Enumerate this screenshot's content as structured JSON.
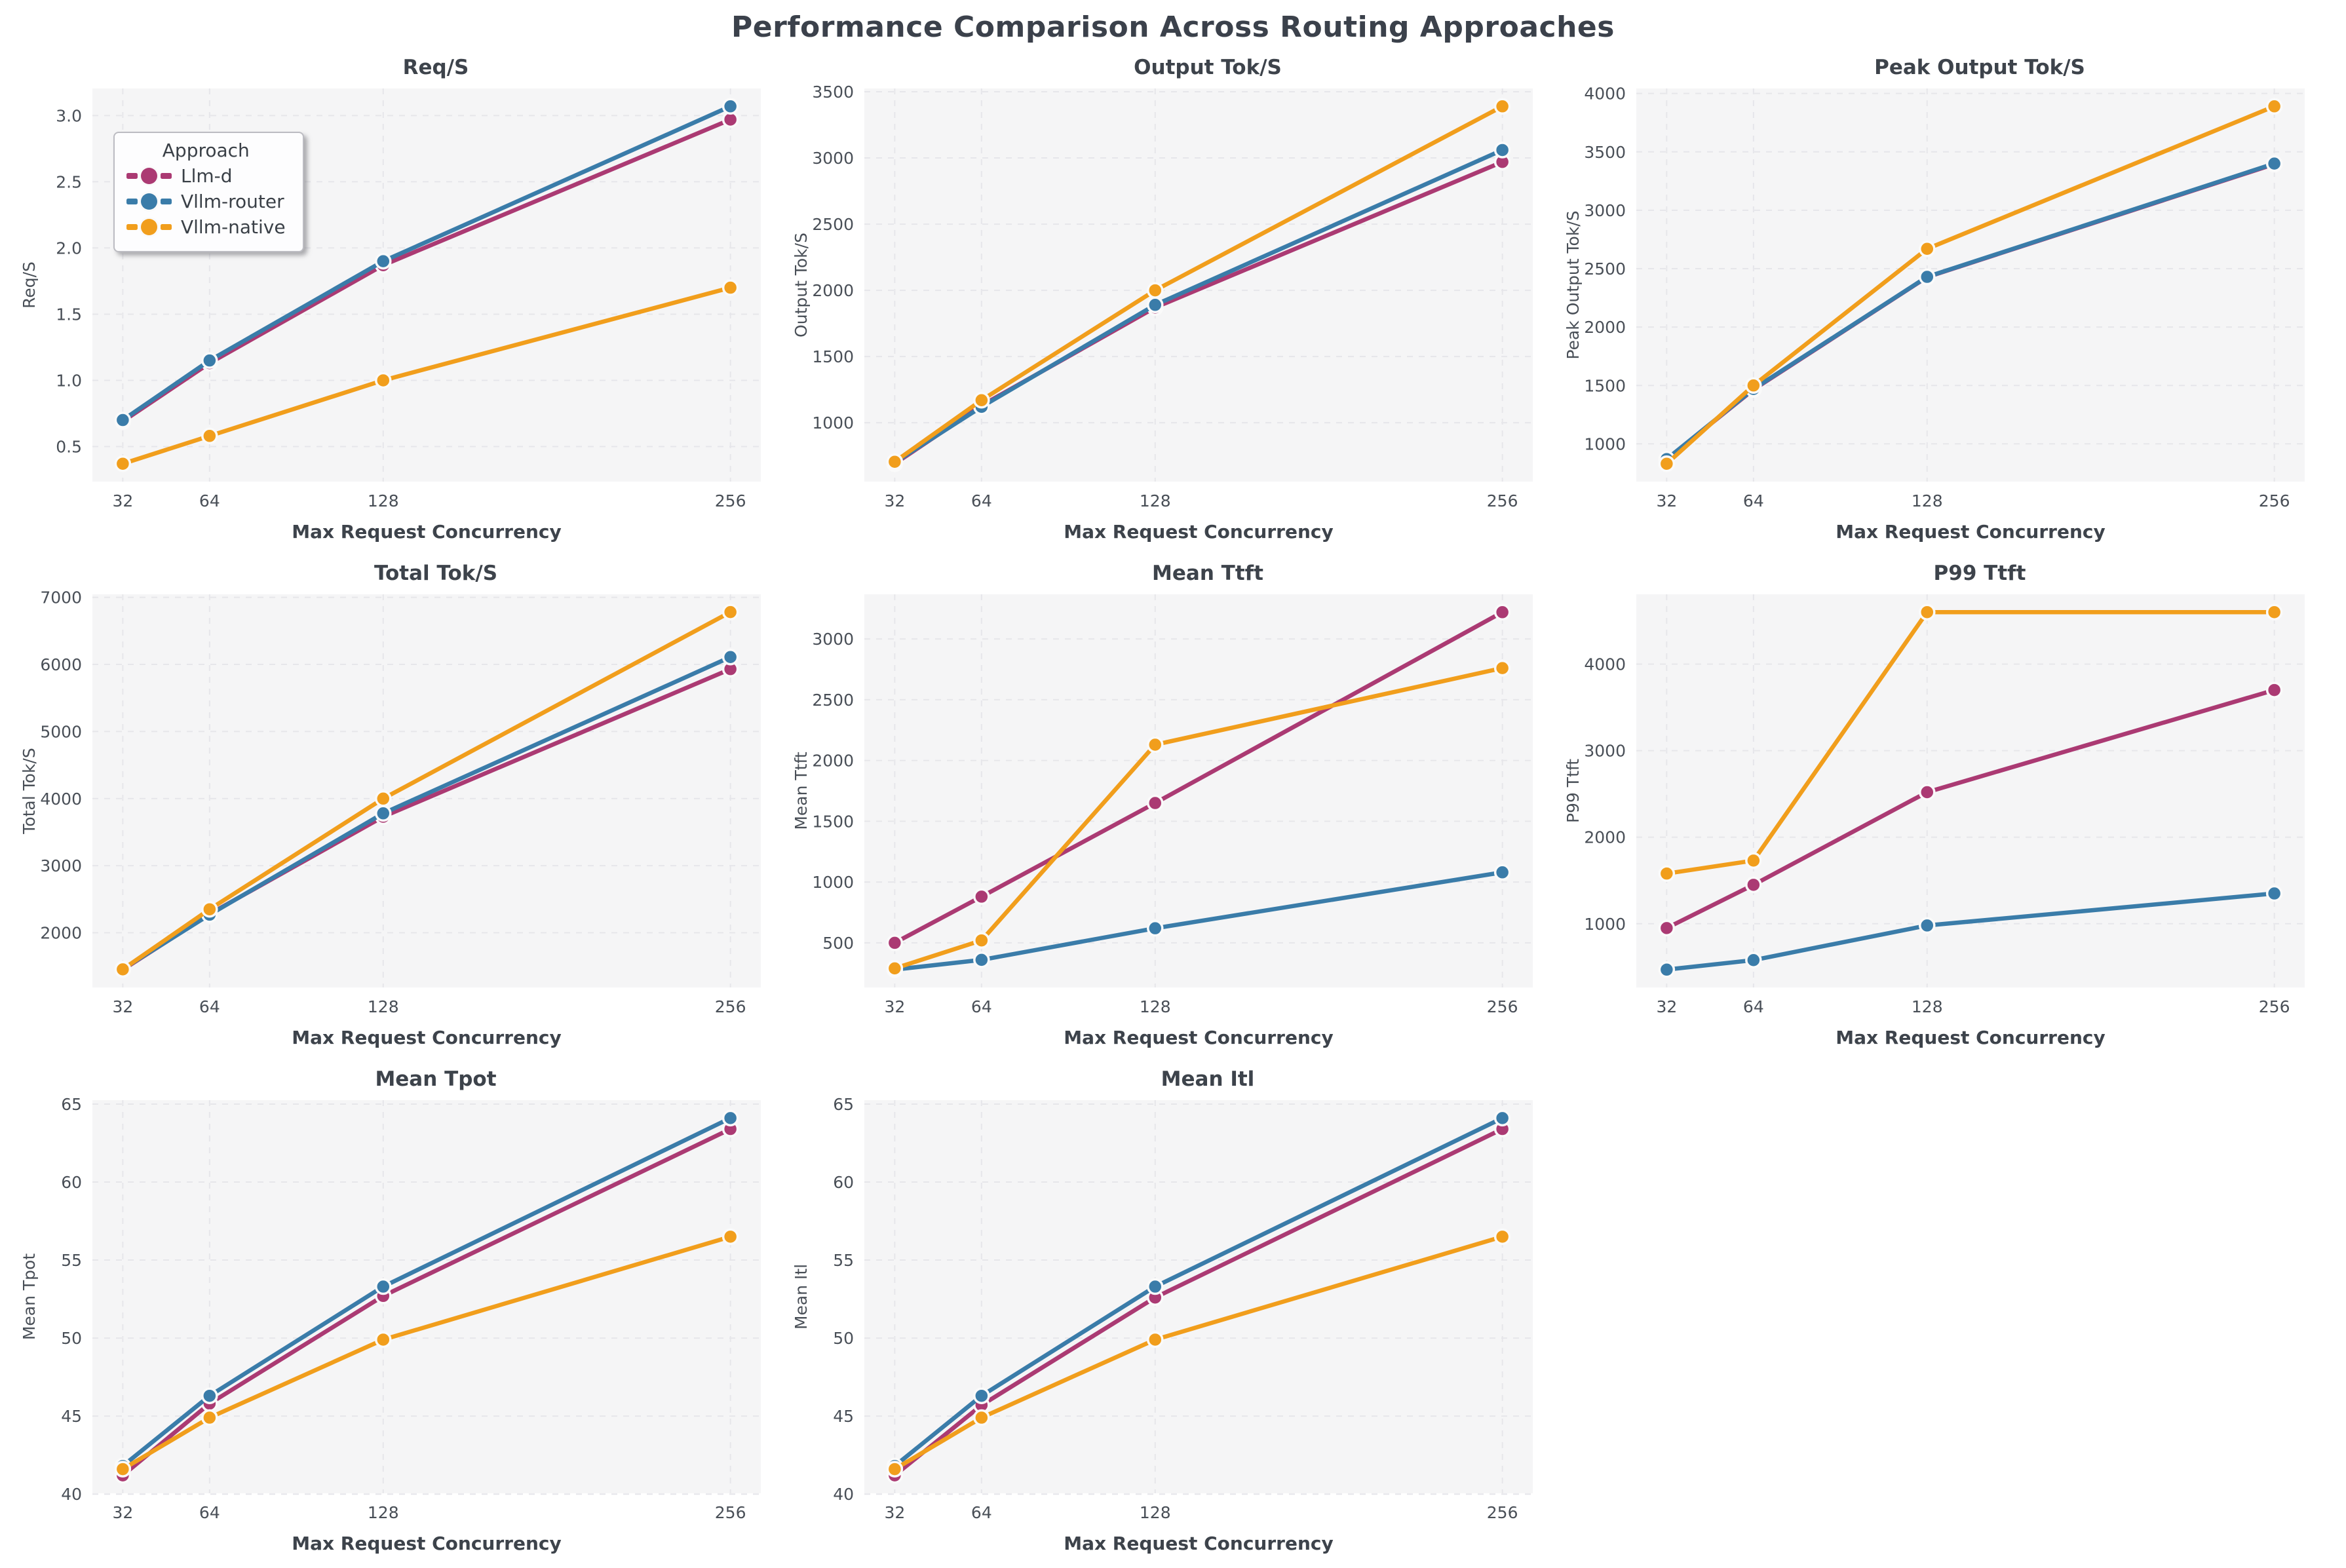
{
  "figure": {
    "title": "Performance Comparison Across Routing Approaches"
  },
  "legend": {
    "title": "Approach",
    "items": [
      {
        "label": "Llm-d",
        "color": "#ab3a73"
      },
      {
        "label": "Vllm-router",
        "color": "#3a7ca9"
      },
      {
        "label": "Vllm-native",
        "color": "#f19e1c"
      }
    ]
  },
  "style": {
    "plot_bg": "#f5f5f6",
    "grid_color": "#e6e6ea",
    "tick_color": "#494f57",
    "label_color": "#3d434b",
    "marker_edge": "#fafafa"
  },
  "xlabel": "Max Request Concurrency",
  "x_ticks": [
    32,
    64,
    128,
    256
  ],
  "chart_data": [
    {
      "type": "line",
      "title": "Req/S",
      "ylabel": "Req/S",
      "x": [
        32,
        64,
        128,
        256
      ],
      "xlim": [
        20.8,
        267.2
      ],
      "ylim": [
        0.235,
        3.205
      ],
      "ytick_labels": [
        "0.5",
        "1.0",
        "1.5",
        "2.0",
        "2.5",
        "3.0"
      ],
      "series": [
        {
          "name": "Llm-d",
          "color": "#ab3a73",
          "values": [
            0.69,
            1.13,
            1.87,
            2.97
          ]
        },
        {
          "name": "Vllm-router",
          "color": "#3a7ca9",
          "values": [
            0.7,
            1.15,
            1.9,
            3.07
          ]
        },
        {
          "name": "Vllm-native",
          "color": "#f19e1c",
          "values": [
            0.37,
            0.58,
            1.0,
            1.7
          ]
        }
      ],
      "has_legend": true
    },
    {
      "type": "line",
      "title": "Output Tok/S",
      "ylabel": "Output Tok/S",
      "x": [
        32,
        64,
        128,
        256
      ],
      "xlim": [
        20.8,
        267.2
      ],
      "ylim": [
        555,
        3525
      ],
      "ytick_labels": [
        "1000",
        "1500",
        "2000",
        "2500",
        "3000",
        "3500"
      ],
      "series": [
        {
          "name": "Llm-d",
          "color": "#ab3a73",
          "values": [
            690,
            1130,
            1870,
            2970
          ]
        },
        {
          "name": "Vllm-router",
          "color": "#3a7ca9",
          "values": [
            700,
            1120,
            1890,
            3060
          ]
        },
        {
          "name": "Vllm-native",
          "color": "#f19e1c",
          "values": [
            705,
            1170,
            2000,
            3390
          ]
        }
      ],
      "has_legend": false
    },
    {
      "type": "line",
      "title": "Peak Output Tok/S",
      "ylabel": "Peak Output Tok/S",
      "x": [
        32,
        64,
        128,
        256
      ],
      "xlim": [
        20.8,
        267.2
      ],
      "ylim": [
        677,
        4043
      ],
      "ytick_labels": [
        "1000",
        "1500",
        "2000",
        "2500",
        "3000",
        "3500",
        "4000"
      ],
      "series": [
        {
          "name": "Llm-d",
          "color": "#ab3a73",
          "values": [
            868,
            1465,
            2428,
            3395
          ]
        },
        {
          "name": "Vllm-router",
          "color": "#3a7ca9",
          "values": [
            870,
            1470,
            2430,
            3400
          ]
        },
        {
          "name": "Vllm-native",
          "color": "#f19e1c",
          "values": [
            830,
            1500,
            2670,
            3890
          ]
        }
      ],
      "has_legend": false
    },
    {
      "type": "line",
      "title": "Total Tok/S",
      "ylabel": "Total Tok/S",
      "x": [
        32,
        64,
        128,
        256
      ],
      "xlim": [
        20.8,
        267.2
      ],
      "ylim": [
        1185,
        7045
      ],
      "ytick_labels": [
        "2000",
        "3000",
        "4000",
        "5000",
        "6000",
        "7000"
      ],
      "series": [
        {
          "name": "Llm-d",
          "color": "#ab3a73",
          "values": [
            1450,
            2280,
            3730,
            5930
          ]
        },
        {
          "name": "Vllm-router",
          "color": "#3a7ca9",
          "values": [
            1460,
            2270,
            3780,
            6110
          ]
        },
        {
          "name": "Vllm-native",
          "color": "#f19e1c",
          "values": [
            1455,
            2350,
            4000,
            6780
          ]
        }
      ],
      "has_legend": false
    },
    {
      "type": "line",
      "title": "Mean Ttft",
      "ylabel": "Mean Ttft",
      "x": [
        32,
        64,
        128,
        256
      ],
      "xlim": [
        20.8,
        267.2
      ],
      "ylim": [
        133,
        3367
      ],
      "ytick_labels": [
        "500",
        "1000",
        "1500",
        "2000",
        "2500",
        "3000"
      ],
      "series": [
        {
          "name": "Llm-d",
          "color": "#ab3a73",
          "values": [
            500,
            880,
            1650,
            3220
          ]
        },
        {
          "name": "Vllm-router",
          "color": "#3a7ca9",
          "values": [
            280,
            360,
            620,
            1080
          ]
        },
        {
          "name": "Vllm-native",
          "color": "#f19e1c",
          "values": [
            290,
            520,
            2130,
            2760
          ]
        }
      ],
      "has_legend": false
    },
    {
      "type": "line",
      "title": "P99 Ttft",
      "ylabel": "P99 Ttft",
      "x": [
        32,
        64,
        128,
        256
      ],
      "xlim": [
        20.8,
        267.2
      ],
      "ylim": [
        264,
        4806
      ],
      "ytick_labels": [
        "1000",
        "2000",
        "3000",
        "4000"
      ],
      "series": [
        {
          "name": "Llm-d",
          "color": "#ab3a73",
          "values": [
            950,
            1450,
            2520,
            3700
          ]
        },
        {
          "name": "Vllm-router",
          "color": "#3a7ca9",
          "values": [
            470,
            580,
            980,
            1350
          ]
        },
        {
          "name": "Vllm-native",
          "color": "#f19e1c",
          "values": [
            1580,
            1730,
            4600,
            4600
          ]
        }
      ],
      "has_legend": false
    },
    {
      "type": "line",
      "title": "Mean Tpot",
      "ylabel": "Mean Tpot",
      "x": [
        32,
        64,
        128,
        256
      ],
      "xlim": [
        20.8,
        267.2
      ],
      "ylim": [
        40.05,
        65.25
      ],
      "ytick_labels": [
        "40",
        "45",
        "50",
        "55",
        "60",
        "65"
      ],
      "series": [
        {
          "name": "Llm-d",
          "color": "#ab3a73",
          "values": [
            41.2,
            45.8,
            52.7,
            63.4
          ]
        },
        {
          "name": "Vllm-router",
          "color": "#3a7ca9",
          "values": [
            41.8,
            46.3,
            53.3,
            64.1
          ]
        },
        {
          "name": "Vllm-native",
          "color": "#f19e1c",
          "values": [
            41.6,
            44.9,
            49.9,
            56.5
          ]
        }
      ],
      "has_legend": false
    },
    {
      "type": "line",
      "title": "Mean Itl",
      "ylabel": "Mean Itl",
      "x": [
        32,
        64,
        128,
        256
      ],
      "xlim": [
        20.8,
        267.2
      ],
      "ylim": [
        40.05,
        65.25
      ],
      "ytick_labels": [
        "40",
        "45",
        "50",
        "55",
        "60",
        "65"
      ],
      "series": [
        {
          "name": "Llm-d",
          "color": "#ab3a73",
          "values": [
            41.2,
            45.7,
            52.6,
            63.4
          ]
        },
        {
          "name": "Vllm-router",
          "color": "#3a7ca9",
          "values": [
            41.8,
            46.3,
            53.3,
            64.1
          ]
        },
        {
          "name": "Vllm-native",
          "color": "#f19e1c",
          "values": [
            41.6,
            44.9,
            49.9,
            56.5
          ]
        }
      ],
      "has_legend": false
    }
  ]
}
